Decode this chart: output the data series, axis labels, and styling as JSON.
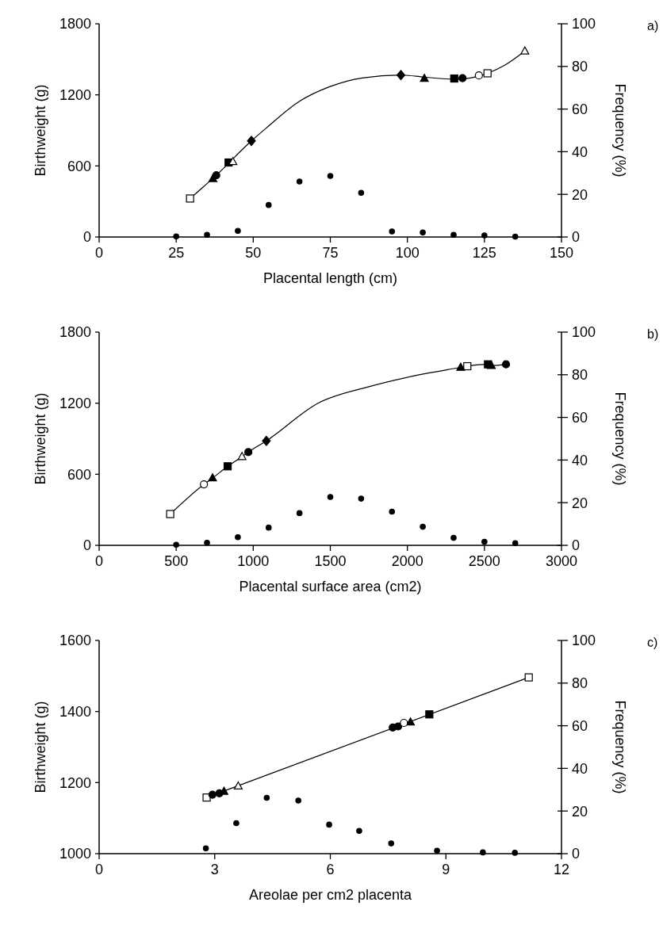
{
  "chart_data": [
    {
      "type": "scatter",
      "annotations": [
        "a)"
      ],
      "xlabel": "Placental length (cm)",
      "ylabel": "Birthweight (g)",
      "y2label": "Frequency (%)",
      "xlim": [
        0,
        150
      ],
      "xticks": [
        0,
        25,
        50,
        75,
        100,
        125,
        150
      ],
      "ylim": [
        0,
        1800
      ],
      "yticks": [
        0,
        600,
        1200,
        1800
      ],
      "y2lim": [
        0,
        100
      ],
      "y2ticks": [
        0,
        20,
        40,
        60,
        80,
        100
      ],
      "series": [
        {
          "type": "line",
          "marker": "none",
          "color": "#000000",
          "x": [
            29.5,
            38,
            49.4,
            54.2,
            64.9,
            74.6,
            85.4,
            97.9,
            105.5,
            115.2,
            123.1,
            126,
            131.7,
            138.1
          ],
          "values": [
            325,
            521,
            811,
            919,
            1144,
            1267,
            1343,
            1367,
            1350,
            1332,
            1358,
            1382,
            1452,
            1569
          ]
        },
        {
          "marker": "square",
          "color": "#ffffff",
          "x": [
            29.5,
            126
          ],
          "values": [
            325,
            1382
          ]
        },
        {
          "marker": "triangle",
          "color": "#000000",
          "x": [
            36.9,
            105.5
          ],
          "values": [
            492,
            1338
          ]
        },
        {
          "marker": "circle",
          "color": "#000000",
          "x": [
            38,
            117.9
          ],
          "values": [
            521,
            1341
          ]
        },
        {
          "marker": "square",
          "color": "#000000",
          "x": [
            42,
            115.2
          ],
          "values": [
            629,
            1338
          ]
        },
        {
          "marker": "triangle",
          "color": "#ffffff",
          "x": [
            43.4,
            138.1
          ],
          "values": [
            635,
            1569
          ]
        },
        {
          "marker": "diamond",
          "color": "#000000",
          "x": [
            49.4,
            97.9
          ],
          "values": [
            811,
            1367
          ]
        },
        {
          "marker": "circle",
          "color": "#ffffff",
          "x": [
            123.2
          ],
          "values": [
            1364
          ]
        },
        {
          "marker": "circle",
          "color": "#000000",
          "axis": "y2",
          "x": [
            25,
            35,
            45,
            55,
            65,
            75,
            85,
            95,
            105,
            115,
            125,
            135
          ],
          "values": [
            0.3,
            1,
            2.9,
            15,
            26,
            28.6,
            20.7,
            2.6,
            2.1,
            1,
            0.7,
            0.2
          ]
        }
      ]
    },
    {
      "type": "scatter",
      "annotations": [
        "b)"
      ],
      "xlabel": "Placental surface area (cm2)",
      "ylabel": "Birthweight (g)",
      "y2label": "Frequency (%)",
      "xlim": [
        0,
        3000
      ],
      "xticks": [
        0,
        500,
        1000,
        1500,
        2000,
        2500,
        3000
      ],
      "ylim": [
        0,
        1800
      ],
      "yticks": [
        0,
        600,
        1200,
        1800
      ],
      "y2lim": [
        0,
        100
      ],
      "y2ticks": [
        0,
        20,
        40,
        60,
        80,
        100
      ],
      "series": [
        {
          "type": "line",
          "marker": "none",
          "color": "#000000",
          "x": [
            461,
            680,
            736,
            834,
            927,
            968,
            1085,
            1425,
            1750,
            2075,
            2346,
            2389,
            2523,
            2545,
            2640
          ],
          "values": [
            264,
            515,
            568,
            667,
            748,
            787,
            882,
            1203,
            1339,
            1439,
            1502,
            1512,
            1528,
            1517,
            1528
          ]
        },
        {
          "marker": "square",
          "color": "#ffffff",
          "x": [
            461,
            2389
          ],
          "values": [
            264,
            1512
          ]
        },
        {
          "marker": "circle",
          "color": "#ffffff",
          "x": [
            680
          ],
          "values": [
            515
          ]
        },
        {
          "marker": "triangle",
          "color": "#000000",
          "x": [
            736,
            2346,
            2545
          ],
          "values": [
            568,
            1502,
            1517
          ]
        },
        {
          "marker": "square",
          "color": "#000000",
          "x": [
            834,
            2523
          ],
          "values": [
            667,
            1528
          ]
        },
        {
          "marker": "triangle",
          "color": "#ffffff",
          "x": [
            927
          ],
          "values": [
            748
          ]
        },
        {
          "marker": "circle",
          "color": "#000000",
          "x": [
            968,
            2640
          ],
          "values": [
            787,
            1528
          ]
        },
        {
          "marker": "diamond",
          "color": "#000000",
          "x": [
            1085
          ],
          "values": [
            882
          ]
        },
        {
          "marker": "circle",
          "color": "#000000",
          "axis": "y2",
          "x": [
            500,
            700,
            900,
            1100,
            1300,
            1500,
            1700,
            1900,
            2100,
            2300,
            2500,
            2700
          ],
          "values": [
            0.3,
            1.2,
            3.8,
            8.3,
            15.1,
            22.7,
            21.9,
            15.8,
            8.7,
            3.5,
            1.7,
            1
          ]
        }
      ]
    },
    {
      "type": "scatter",
      "annotations": [
        "c)"
      ],
      "xlabel": "Areolae per cm2 placenta",
      "ylabel": "Birthweight (g)",
      "y2label": "Frequency (%)",
      "xlim": [
        0,
        12
      ],
      "xticks": [
        0,
        3,
        6,
        9,
        12
      ],
      "ylim": [
        1000,
        1600
      ],
      "yticks": [
        1000,
        1200,
        1400,
        1600
      ],
      "y2lim": [
        0,
        100
      ],
      "y2ticks": [
        0,
        20,
        40,
        60,
        80,
        100
      ],
      "series": [
        {
          "type": "line",
          "marker": "none",
          "color": "#000000",
          "x": [
            2.79,
            11.15
          ],
          "values": [
            1158,
            1496
          ]
        },
        {
          "marker": "square",
          "color": "#ffffff",
          "x": [
            2.79,
            11.15
          ],
          "values": [
            1158,
            1496
          ]
        },
        {
          "marker": "circle",
          "color": "#000000",
          "x": [
            2.94,
            3.12,
            7.62,
            7.76
          ],
          "values": [
            1166,
            1170,
            1355,
            1358
          ]
        },
        {
          "marker": "triangle",
          "color": "#000000",
          "x": [
            3.24,
            8.08
          ],
          "values": [
            1175,
            1370
          ]
        },
        {
          "marker": "triangle",
          "color": "#ffffff",
          "x": [
            3.61
          ],
          "values": [
            1190
          ]
        },
        {
          "marker": "circle",
          "color": "#ffffff",
          "x": [
            7.91
          ],
          "values": [
            1368
          ]
        },
        {
          "marker": "square",
          "color": "#000000",
          "x": [
            8.57
          ],
          "values": [
            1392
          ]
        },
        {
          "marker": "circle",
          "color": "#000000",
          "axis": "y2",
          "x": [
            2.77,
            3.56,
            4.35,
            5.17,
            5.97,
            6.75,
            7.58,
            8.77,
            9.96,
            10.79
          ],
          "values": [
            2.5,
            14.3,
            26.2,
            24.9,
            13.6,
            10.7,
            4.8,
            1.4,
            0.6,
            0.4
          ]
        }
      ]
    }
  ]
}
